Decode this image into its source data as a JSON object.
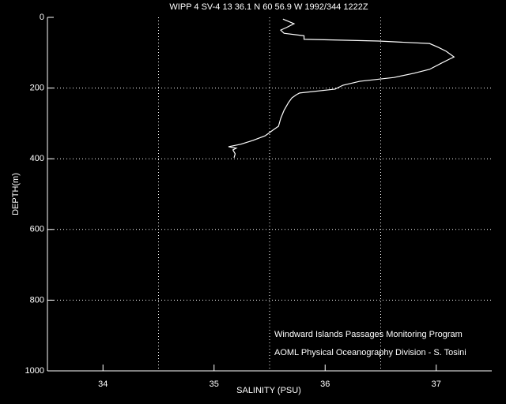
{
  "chart_data": {
    "type": "line",
    "title": "WIPP 4 SV-4  13 36.1 N  60 56.9 W  1992/344 1222Z",
    "xlabel": "SALINITY (PSU)",
    "ylabel": "DEPTH(m)",
    "annotations": [
      "Windward Islands Passages Monitoring Program",
      "AOML Physical Oceanography Division - S. Tosini"
    ],
    "color": "#ffffff",
    "x": [
      35.62,
      35.72,
      35.65,
      35.6,
      35.63,
      35.81,
      35.81,
      36.48,
      36.94,
      37.02,
      37.09,
      37.16,
      37.12,
      37.05,
      36.94,
      36.8,
      36.62,
      36.31,
      36.16,
      36.09,
      35.77,
      35.74,
      35.7,
      35.67,
      35.63,
      35.6,
      35.58,
      35.53,
      35.46,
      35.35,
      35.24,
      35.13,
      35.2,
      35.17,
      35.19,
      35.18
    ],
    "y": [
      5,
      18,
      29,
      36,
      45,
      52,
      62,
      67,
      74,
      85,
      96,
      112,
      118,
      129,
      147,
      158,
      170,
      181,
      192,
      203,
      214,
      219,
      228,
      241,
      263,
      286,
      308,
      319,
      335,
      348,
      359,
      366,
      370,
      375,
      386,
      397
    ],
    "xlim": [
      33.5,
      37.5
    ],
    "xticks": [
      34,
      35,
      36,
      37
    ],
    "ylim": [
      0,
      1000
    ],
    "yticks": [
      0,
      200,
      400,
      600,
      800,
      1000
    ],
    "y_inverted": true,
    "xgrid": [
      34.5,
      35.5,
      36.5
    ],
    "grid": true
  }
}
